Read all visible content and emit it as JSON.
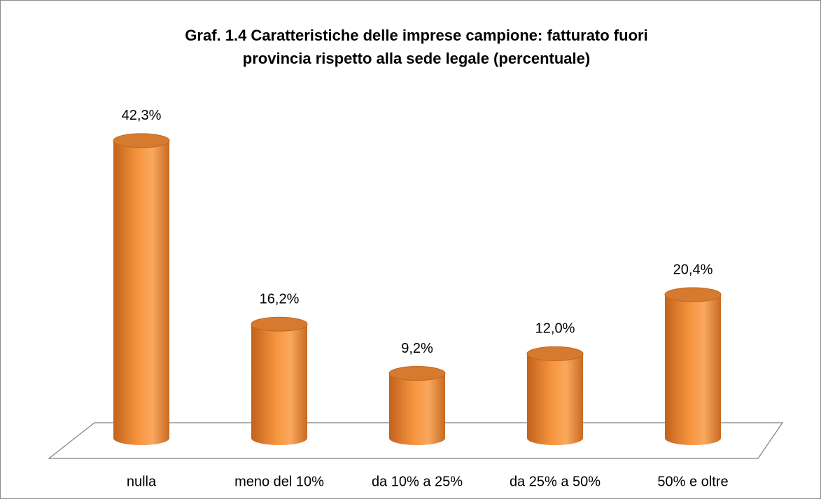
{
  "chart_data": {
    "type": "bar3d",
    "title": "Graf. 1.4 Caratteristiche delle imprese campione: fatturato fuori",
    "subtitle": "provincia rispetto alla sede legale (percentuale)",
    "categories": [
      "nulla",
      "meno del 10%",
      "da 10% a 25%",
      "da 25% a 50%",
      "50% e oltre"
    ],
    "values": [
      42.3,
      16.2,
      9.2,
      12.0,
      20.4
    ],
    "value_labels": [
      "42,3%",
      "16,2%",
      "9,2%",
      "12,0%",
      "20,4%"
    ],
    "color": "#f7963f"
  }
}
